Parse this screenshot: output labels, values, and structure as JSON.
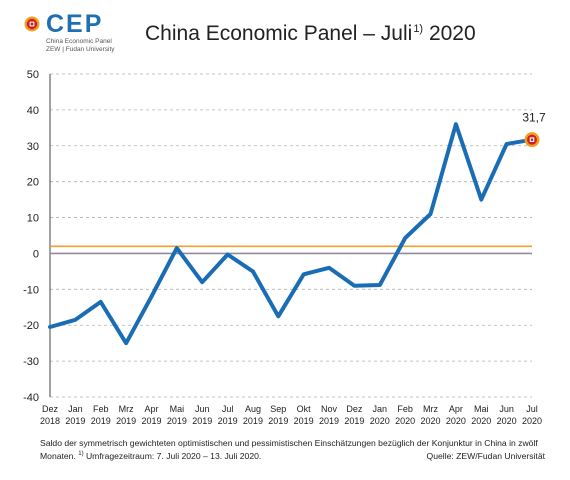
{
  "header": {
    "logo_word": "CEP",
    "logo_line1": "China Economic Panel",
    "logo_line2": "ZEW | Fudan University",
    "title_main": "China Economic Panel – Juli",
    "title_sup": "1)",
    "title_year": "2020"
  },
  "colors": {
    "series": "#1a6db5",
    "reference_line": "#f0a030",
    "zero_line": "#8c8ca0",
    "grid": "#b0b0b0",
    "marker_outer": "#f0a020",
    "marker_inner": "#cc1f1f"
  },
  "chart_data": {
    "type": "line",
    "title": "China Economic Panel – Juli 2020",
    "xlabel": "",
    "ylabel": "",
    "ylim": [
      -40,
      50
    ],
    "yticks": [
      -40,
      -30,
      -20,
      -10,
      0,
      10,
      20,
      30,
      40,
      50
    ],
    "categories": [
      [
        "Dez",
        "2018"
      ],
      [
        "Jan",
        "2019"
      ],
      [
        "Feb",
        "2019"
      ],
      [
        "Mrz",
        "2019"
      ],
      [
        "Apr",
        "2019"
      ],
      [
        "Mai",
        "2019"
      ],
      [
        "Jun",
        "2019"
      ],
      [
        "Jul",
        "2019"
      ],
      [
        "Aug",
        "2019"
      ],
      [
        "Sep",
        "2019"
      ],
      [
        "Okt",
        "2019"
      ],
      [
        "Nov",
        "2019"
      ],
      [
        "Dez",
        "2019"
      ],
      [
        "Jan",
        "2020"
      ],
      [
        "Feb",
        "2020"
      ],
      [
        "Mrz",
        "2020"
      ],
      [
        "Apr",
        "2020"
      ],
      [
        "Mai",
        "2020"
      ],
      [
        "Jun",
        "2020"
      ],
      [
        "Jul",
        "2020"
      ]
    ],
    "series": [
      {
        "values": [
          -20.5,
          -18.5,
          -13.5,
          -25,
          -12,
          1.5,
          -8,
          -0.3,
          -5,
          -17.5,
          -5.8,
          -4,
          -9,
          -8.8,
          4.3,
          11,
          36,
          15,
          30.5,
          31.7
        ]
      }
    ],
    "reference_line_value": 2,
    "grid": "horizontal dashed",
    "annotation": "31,7"
  },
  "footer": {
    "note_line1": "Saldo der symmetrisch gewichteten optimistischen und pessimistischen Einschätzungen bezüglich der Konjunktur in China in zwölf",
    "note_line2_pre": "Monaten.",
    "note_sup": "1)",
    "note_line2_post": "Umfragezeitraum: 7. Juli 2020 – 13. Juli 2020.",
    "source": "Quelle: ZEW/Fudan Universität"
  }
}
